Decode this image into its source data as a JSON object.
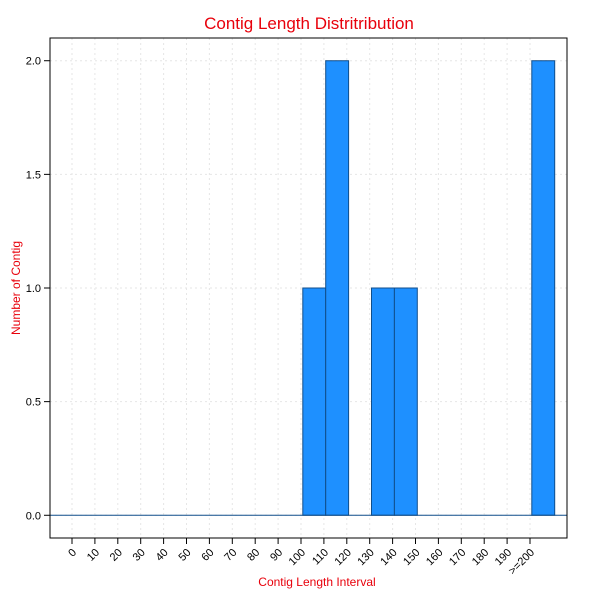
{
  "chart_data": {
    "type": "bar",
    "title": "Contig Length Distritribution",
    "xlabel": "Contig Length Interval",
    "ylabel": "Number of Contig",
    "categories": [
      "0",
      "10",
      "20",
      "30",
      "40",
      "50",
      "60",
      "70",
      "80",
      "90",
      "100",
      "110",
      "120",
      "130",
      "140",
      "150",
      "160",
      "170",
      "180",
      "190",
      ">=200"
    ],
    "values": [
      0,
      0,
      0,
      0,
      0,
      0,
      0,
      0,
      0,
      0,
      1,
      2,
      0,
      1,
      1,
      0,
      0,
      0,
      0,
      0,
      2
    ],
    "ylim": [
      -0.1,
      2.1
    ],
    "yticks": [
      0.0,
      0.5,
      1.0,
      1.5,
      2.0
    ],
    "ytick_labels": [
      "0.0",
      "0.5",
      "1.0",
      "1.5",
      "2.0"
    ],
    "grid": true,
    "colors": {
      "bar_fill": "#1e90ff",
      "bar_stroke": "#104e8b",
      "title": "#e8000b"
    }
  }
}
